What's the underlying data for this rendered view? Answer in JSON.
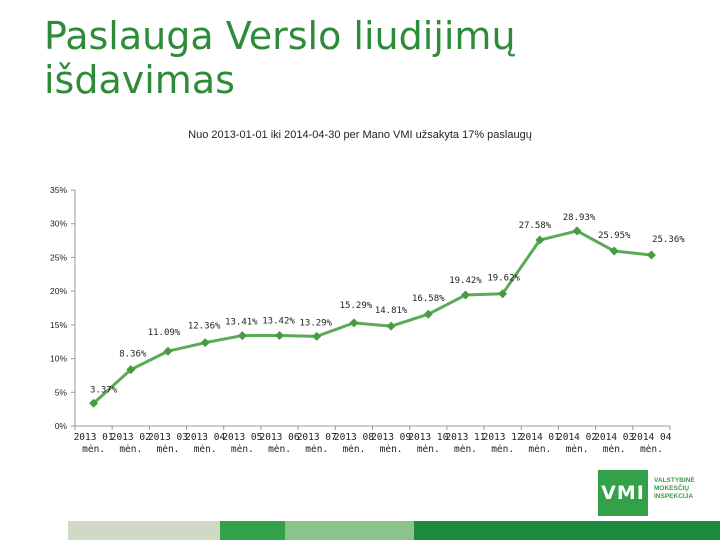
{
  "title": "Paslauga Verslo liudijimų išdavimas",
  "subtitle": "Nuo 2013-01-01 iki 2014-04-30 per Mano VMI užsakyta 17% paslaugų",
  "logo": {
    "abbr": "VMI",
    "lines": [
      "VALSTYBINĖ",
      "MOKESČIŲ",
      "INSPEKCIJA"
    ]
  },
  "colors": {
    "title": "#2e8b3a",
    "line": "#5aab53",
    "marker": "#4a9a45",
    "axis": "#999999",
    "footer": [
      "#d0d8c6",
      "#33a04a",
      "#8cc38c",
      "#1e8a3c"
    ]
  },
  "chart_data": {
    "type": "line",
    "categories": [
      [
        "2013 01",
        "mėn."
      ],
      [
        "2013 02",
        "mėn."
      ],
      [
        "2013 03",
        "mėn."
      ],
      [
        "2013 04",
        "mėn."
      ],
      [
        "2013 05",
        "mėn."
      ],
      [
        "2013 06",
        "mėn."
      ],
      [
        "2013 07",
        "mėn."
      ],
      [
        "2013 08",
        "mėn."
      ],
      [
        "2013 09",
        "mėn."
      ],
      [
        "2013 10",
        "mėn."
      ],
      [
        "2013 11",
        "mėn."
      ],
      [
        "2013 12",
        "mėn."
      ],
      [
        "2014 01",
        "mėn."
      ],
      [
        "2014 02",
        "mėn."
      ],
      [
        "2014 03",
        "mėn."
      ],
      [
        "2014 04",
        "mėn."
      ]
    ],
    "values": [
      3.37,
      8.36,
      11.09,
      12.36,
      13.41,
      13.42,
      13.29,
      15.29,
      14.81,
      16.58,
      19.42,
      19.62,
      27.58,
      28.93,
      25.95,
      25.36
    ],
    "data_labels": [
      "3.37%",
      "8.36%",
      "11.09%",
      "12.36%",
      "13.41%",
      "13.42%",
      "13.29%",
      "15.29%",
      "14.81%",
      "16.58%",
      "19.42%",
      "19.62%",
      "27.58%",
      "28.93%",
      "25.95%",
      "25.36%"
    ],
    "y_ticks": [
      "0%",
      "5%",
      "10%",
      "15%",
      "20%",
      "25%",
      "30%",
      "35%"
    ],
    "ylim": [
      0,
      35
    ],
    "grid": false,
    "legend": "none"
  }
}
